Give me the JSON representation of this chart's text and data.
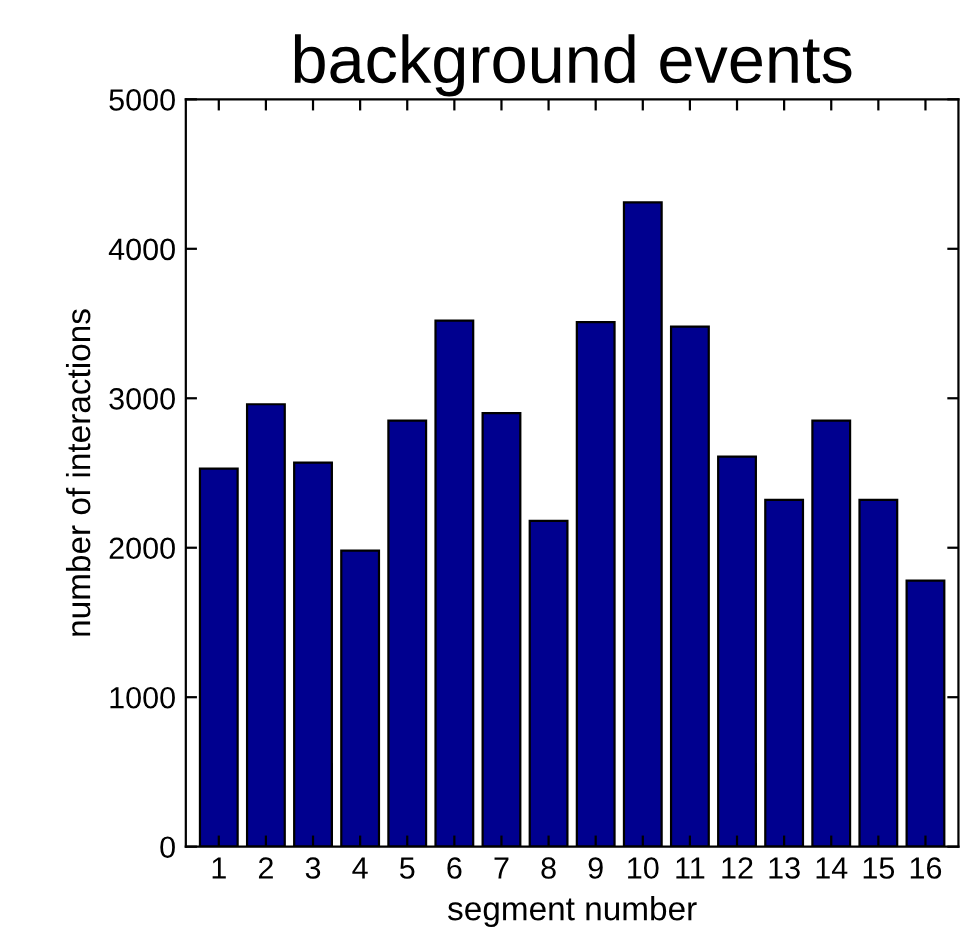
{
  "chart_data": {
    "type": "bar",
    "title": "background events",
    "xlabel": "segment number",
    "ylabel": "number of interactions",
    "categories": [
      "1",
      "2",
      "3",
      "4",
      "5",
      "6",
      "7",
      "8",
      "9",
      "10",
      "11",
      "12",
      "13",
      "14",
      "15",
      "16"
    ],
    "values": [
      2530,
      2960,
      2570,
      1980,
      2850,
      3520,
      2900,
      2180,
      3510,
      4310,
      3480,
      2610,
      2320,
      2850,
      2320,
      1780
    ],
    "color": "#00008f",
    "ylim": [
      0,
      5000
    ],
    "yticks": [
      0,
      1000,
      2000,
      3000,
      4000,
      5000
    ],
    "grid": false
  }
}
